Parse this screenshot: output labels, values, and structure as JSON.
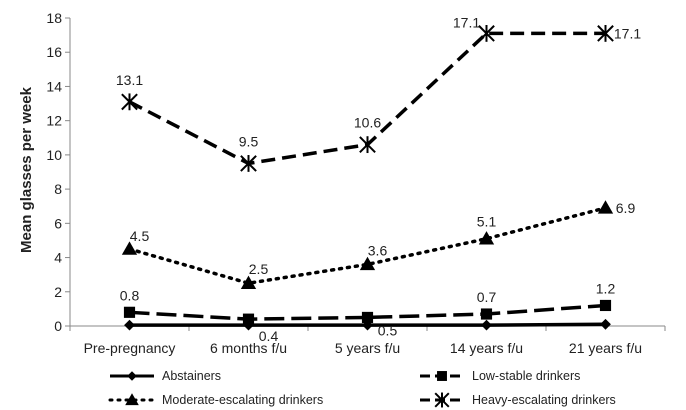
{
  "chart_data": {
    "type": "line",
    "title": "",
    "xlabel": "",
    "ylabel": "Mean glasses per week",
    "ylim": [
      0,
      18
    ],
    "yticks": [
      0,
      2,
      4,
      6,
      8,
      10,
      12,
      14,
      16,
      18
    ],
    "ytick_labels": [
      "0",
      "2",
      "4",
      "6",
      "8",
      "10",
      "12",
      "14",
      "16",
      "18"
    ],
    "grid": false,
    "legend_position": "bottom",
    "categories": [
      "Pre-pregnancy",
      "6 months f/u",
      "5 years f/u",
      "14 years f/u",
      "21 years f/u"
    ],
    "series": [
      {
        "name": "Abstainers",
        "marker": "diamond",
        "line_style": "solid",
        "color": "#000000",
        "values": [
          0.05,
          0.05,
          0.05,
          0.05,
          0.1
        ],
        "labels": [
          "",
          "",
          "",
          "",
          ""
        ]
      },
      {
        "name": "Low-stable drinkers",
        "marker": "square",
        "line_style": "long-dash",
        "color": "#000000",
        "values": [
          0.8,
          0.4,
          0.5,
          0.7,
          1.2
        ],
        "labels": [
          "0.8",
          "0.4",
          "0.5",
          "0.7",
          "1.2"
        ]
      },
      {
        "name": "Moderate-escalating drinkers",
        "marker": "triangle",
        "line_style": "dotted",
        "color": "#000000",
        "values": [
          4.5,
          2.5,
          3.6,
          5.1,
          6.9
        ],
        "labels": [
          "4.5",
          "2.5",
          "3.6",
          "5.1",
          "6.9"
        ]
      },
      {
        "name": "Heavy-escalating drinkers",
        "marker": "star",
        "line_style": "dash",
        "color": "#000000",
        "values": [
          13.1,
          9.5,
          10.6,
          17.1,
          17.1
        ],
        "labels": [
          "13.1",
          "9.5",
          "10.6",
          "17.1",
          "17.1"
        ]
      }
    ]
  }
}
